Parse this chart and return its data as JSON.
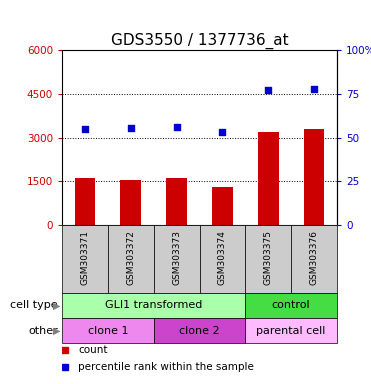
{
  "title": "GDS3550 / 1377736_at",
  "samples": [
    "GSM303371",
    "GSM303372",
    "GSM303373",
    "GSM303374",
    "GSM303375",
    "GSM303376"
  ],
  "counts": [
    1600,
    1550,
    1600,
    1300,
    3200,
    3300
  ],
  "percentile_ranks": [
    55,
    55.5,
    56,
    53,
    77,
    78
  ],
  "ylim_left": [
    0,
    6000
  ],
  "ylim_right": [
    0,
    100
  ],
  "yticks_left": [
    0,
    1500,
    3000,
    4500,
    6000
  ],
  "yticks_right": [
    0,
    25,
    50,
    75,
    100
  ],
  "ytick_labels_left": [
    "0",
    "1500",
    "3000",
    "4500",
    "6000"
  ],
  "ytick_labels_right": [
    "0",
    "25",
    "50",
    "75",
    "100%"
  ],
  "bar_color": "#cc0000",
  "dot_color": "#0000cc",
  "grid_color": "#000000",
  "cell_type_row": {
    "label": "cell type",
    "groups": [
      {
        "text": "GLI1 transformed",
        "span": [
          0,
          4
        ],
        "color": "#aaffaa"
      },
      {
        "text": "control",
        "span": [
          4,
          6
        ],
        "color": "#44dd44"
      }
    ]
  },
  "other_row": {
    "label": "other",
    "groups": [
      {
        "text": "clone 1",
        "span": [
          0,
          2
        ],
        "color": "#ee88ee"
      },
      {
        "text": "clone 2",
        "span": [
          2,
          4
        ],
        "color": "#cc44cc"
      },
      {
        "text": "parental cell",
        "span": [
          4,
          6
        ],
        "color": "#ffbbff"
      }
    ]
  },
  "legend_items": [
    {
      "color": "#cc0000",
      "label": "count"
    },
    {
      "color": "#0000cc",
      "label": "percentile rank within the sample"
    }
  ],
  "tick_label_color_left": "#cc0000",
  "tick_label_color_right": "#0000cc",
  "background_color": "#ffffff",
  "title_fontsize": 11,
  "axis_fontsize": 8,
  "sample_bg_color": "#cccccc"
}
